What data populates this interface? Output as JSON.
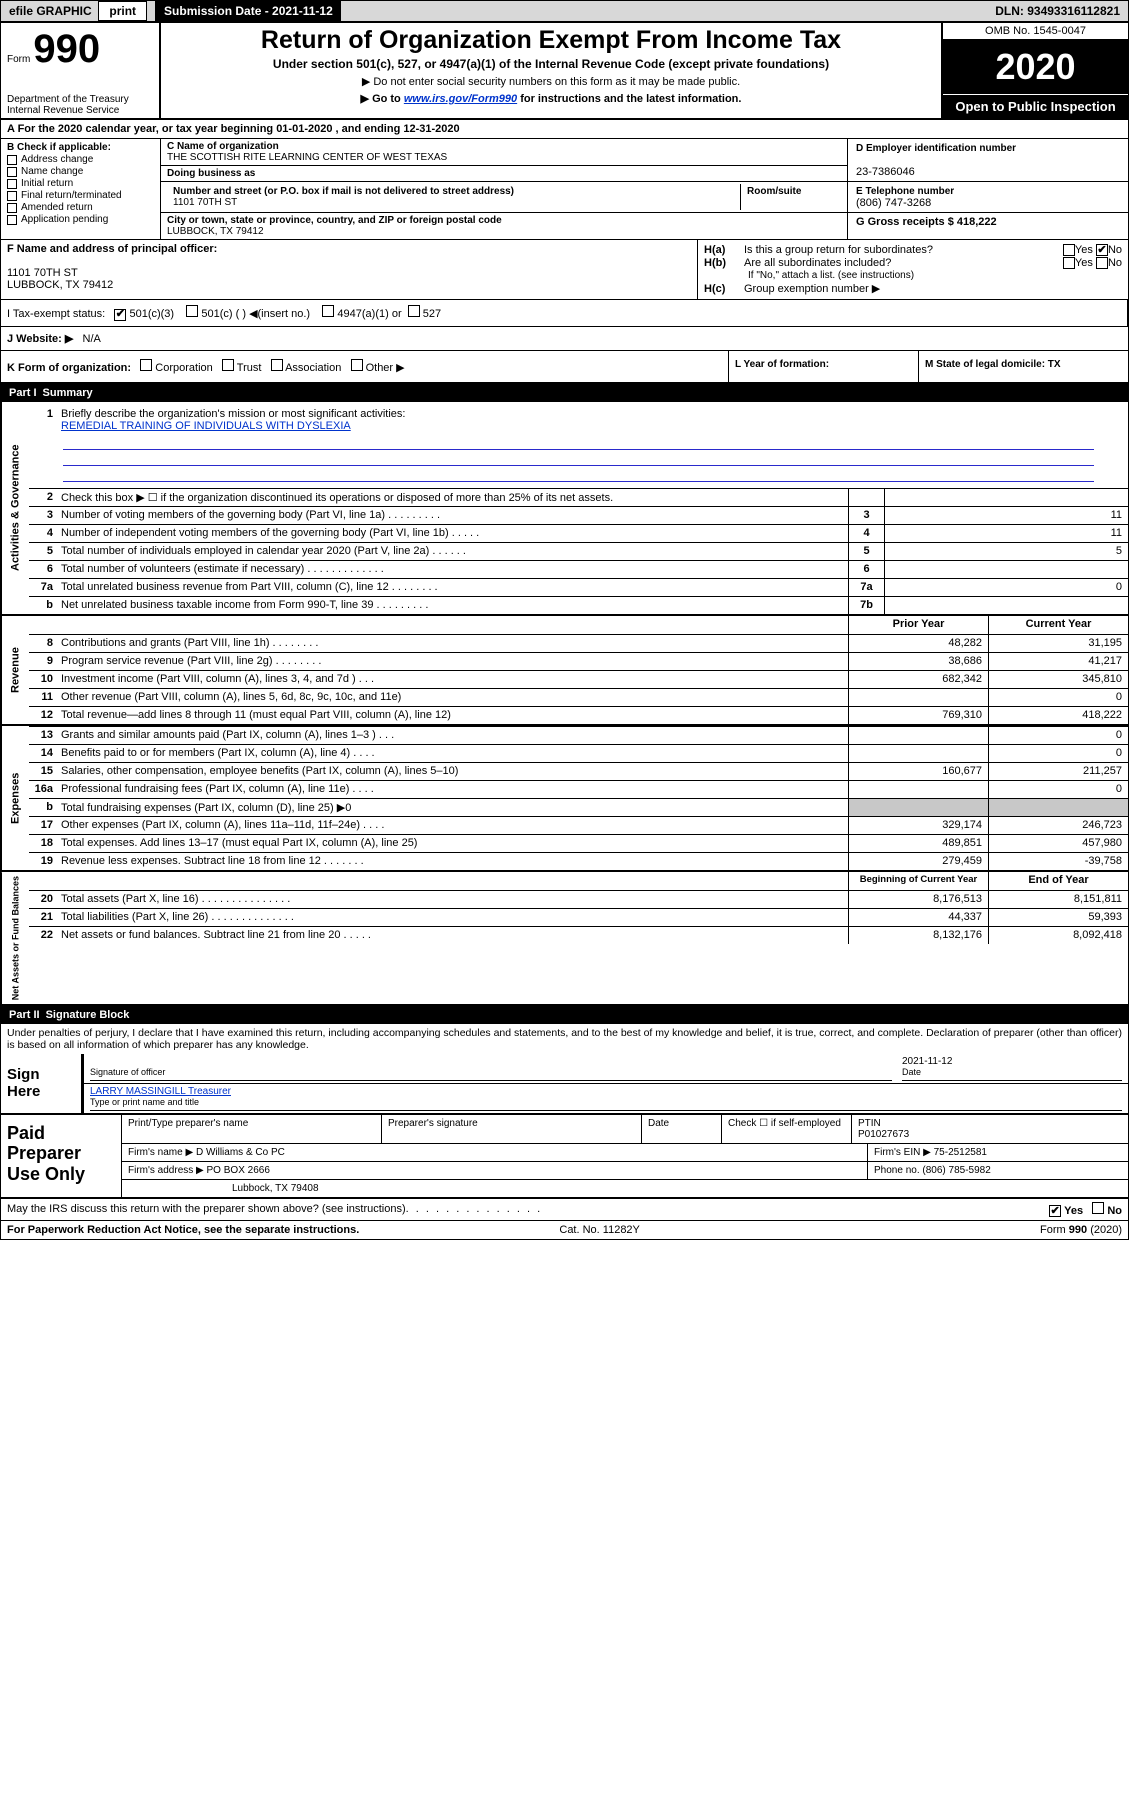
{
  "topbar": {
    "efile": "efile GRAPHIC",
    "print": "print",
    "subdate_label": "Submission Date - 2021-11-12",
    "dln": "DLN: 93493316112821"
  },
  "header": {
    "form_label": "Form",
    "form_number": "990",
    "title": "Return of Organization Exempt From Income Tax",
    "subtitle": "Under section 501(c), 527, or 4947(a)(1) of the Internal Revenue Code (except private foundations)",
    "note1": "▶ Do not enter social security numbers on this form as it may be made public.",
    "note2_prefix": "▶ Go to ",
    "note2_link": "www.irs.gov/Form990",
    "note2_suffix": " for instructions and the latest information.",
    "dept": "Department of the Treasury\nInternal Revenue Service",
    "omb": "OMB No. 1545-0047",
    "year": "2020",
    "open": "Open to Public Inspection"
  },
  "lineA": "A For the 2020 calendar year, or tax year beginning 01-01-2020   , and ending 12-31-2020",
  "boxB": {
    "title": "B Check if applicable:",
    "opts": [
      "Address change",
      "Name change",
      "Initial return",
      "Final return/terminated",
      "Amended return",
      "Application pending"
    ]
  },
  "boxC": {
    "name_label": "C Name of organization",
    "name": "THE SCOTTISH RITE LEARNING CENTER OF WEST TEXAS",
    "dba_label": "Doing business as",
    "addr_label": "Number and street (or P.O. box if mail is not delivered to street address)",
    "room_label": "Room/suite",
    "addr": "1101 70TH ST",
    "city_label": "City or town, state or province, country, and ZIP or foreign postal code",
    "city": "LUBBOCK, TX  79412"
  },
  "boxDE": {
    "d_label": "D Employer identification number",
    "d_val": "23-7386046",
    "e_label": "E Telephone number",
    "e_val": "(806) 747-3268",
    "g_label": "G Gross receipts $",
    "g_val": "418,222"
  },
  "boxF": {
    "label": "F Name and address of principal officer:",
    "addr1": "1101 70TH ST",
    "addr2": "LUBBOCK, TX  79412"
  },
  "boxH": {
    "a_lbl": "H(a)",
    "a_text": "Is this a group return for subordinates?",
    "a_yes": "Yes",
    "a_no": "No",
    "b_lbl": "H(b)",
    "b_text": "Are all subordinates included?",
    "b_note": "If \"No,\" attach a list. (see instructions)",
    "c_lbl": "H(c)",
    "c_text": "Group exemption number ▶"
  },
  "rowI": {
    "label": "I   Tax-exempt status:",
    "o1": "501(c)(3)",
    "o2": "501(c) (   ) ◀(insert no.)",
    "o3": "4947(a)(1) or",
    "o4": "527"
  },
  "rowJ": {
    "label": "J   Website: ▶",
    "val": "N/A"
  },
  "rowK": {
    "k": "K Form of organization:",
    "opts": [
      "Corporation",
      "Trust",
      "Association",
      "Other ▶"
    ],
    "l": "L Year of formation:",
    "m": "M State of legal domicile: TX"
  },
  "part1": {
    "label": "Part I",
    "title": "Summary"
  },
  "mission": {
    "num": "1",
    "text": "Briefly describe the organization's mission or most significant activities:",
    "val": "REMEDIAL TRAINING OF INDIVIDUALS WITH DYSLEXIA"
  },
  "gov": {
    "side": "Activities & Governance",
    "rows": [
      {
        "n": "2",
        "d": "Check this box ▶ ☐  if the organization discontinued its operations or disposed of more than 25% of its net assets.",
        "k": "",
        "v": ""
      },
      {
        "n": "3",
        "d": "Number of voting members of the governing body (Part VI, line 1a)   .    .    .    .    .    .    .    .    .",
        "k": "3",
        "v": "11"
      },
      {
        "n": "4",
        "d": "Number of independent voting members of the governing body (Part VI, line 1b)   .    .    .    .    .",
        "k": "4",
        "v": "11"
      },
      {
        "n": "5",
        "d": "Total number of individuals employed in calendar year 2020 (Part V, line 2a)   .    .    .    .    .    .",
        "k": "5",
        "v": "5"
      },
      {
        "n": "6",
        "d": "Total number of volunteers (estimate if necessary)   .    .    .    .    .    .    .    .    .    .    .    .    .",
        "k": "6",
        "v": ""
      },
      {
        "n": "7a",
        "d": "Total unrelated business revenue from Part VIII, column (C), line 12   .    .    .    .    .    .    .    .",
        "k": "7a",
        "v": "0"
      },
      {
        "n": "b",
        "d": "Net unrelated business taxable income from Form 990-T, line 39   .    .    .    .    .    .    .    .    .",
        "k": "7b",
        "v": ""
      }
    ]
  },
  "rev": {
    "side": "Revenue",
    "hdr_prior": "Prior Year",
    "hdr_curr": "Current Year",
    "rows": [
      {
        "n": "8",
        "d": "Contributions and grants (Part VIII, line 1h)   .    .    .    .    .    .    .    .",
        "p": "48,282",
        "c": "31,195"
      },
      {
        "n": "9",
        "d": "Program service revenue (Part VIII, line 2g)   .    .    .    .    .    .    .    .",
        "p": "38,686",
        "c": "41,217"
      },
      {
        "n": "10",
        "d": "Investment income (Part VIII, column (A), lines 3, 4, and 7d )   .    .    .",
        "p": "682,342",
        "c": "345,810"
      },
      {
        "n": "11",
        "d": "Other revenue (Part VIII, column (A), lines 5, 6d, 8c, 9c, 10c, and 11e)",
        "p": "",
        "c": "0"
      },
      {
        "n": "12",
        "d": "Total revenue—add lines 8 through 11 (must equal Part VIII, column (A), line 12)",
        "p": "769,310",
        "c": "418,222"
      }
    ]
  },
  "exp": {
    "side": "Expenses",
    "rows": [
      {
        "n": "13",
        "d": "Grants and similar amounts paid (Part IX, column (A), lines 1–3 )   .    .    .",
        "p": "",
        "c": "0"
      },
      {
        "n": "14",
        "d": "Benefits paid to or for members (Part IX, column (A), line 4)   .    .    .    .",
        "p": "",
        "c": "0"
      },
      {
        "n": "15",
        "d": "Salaries, other compensation, employee benefits (Part IX, column (A), lines 5–10)",
        "p": "160,677",
        "c": "211,257"
      },
      {
        "n": "16a",
        "d": "Professional fundraising fees (Part IX, column (A), line 11e)   .    .    .    .",
        "p": "",
        "c": "0"
      },
      {
        "n": "b",
        "d": "Total fundraising expenses (Part IX, column (D), line 25) ▶0",
        "p": "SHADED",
        "c": "SHADED"
      },
      {
        "n": "17",
        "d": "Other expenses (Part IX, column (A), lines 11a–11d, 11f–24e)   .    .    .    .",
        "p": "329,174",
        "c": "246,723"
      },
      {
        "n": "18",
        "d": "Total expenses. Add lines 13–17 (must equal Part IX, column (A), line 25)",
        "p": "489,851",
        "c": "457,980"
      },
      {
        "n": "19",
        "d": "Revenue less expenses. Subtract line 18 from line 12   .    .    .    .    .    .    .",
        "p": "279,459",
        "c": "-39,758"
      }
    ]
  },
  "net": {
    "side": "Net Assets or Fund Balances",
    "hdr_beg": "Beginning of Current Year",
    "hdr_end": "End of Year",
    "rows": [
      {
        "n": "20",
        "d": "Total assets (Part X, line 16)   .    .    .    .    .    .    .    .    .    .    .    .    .    .    .",
        "p": "8,176,513",
        "c": "8,151,811"
      },
      {
        "n": "21",
        "d": "Total liabilities (Part X, line 26)   .    .    .    .    .    .    .    .    .    .    .    .    .    .",
        "p": "44,337",
        "c": "59,393"
      },
      {
        "n": "22",
        "d": "Net assets or fund balances. Subtract line 21 from line 20   .    .    .    .    .",
        "p": "8,132,176",
        "c": "8,092,418"
      }
    ]
  },
  "part2": {
    "label": "Part II",
    "title": "Signature Block"
  },
  "sig": {
    "decl": "Under penalties of perjury, I declare that I have examined this return, including accompanying schedules and statements, and to the best of my knowledge and belief, it is true, correct, and complete. Declaration of preparer (other than officer) is based on all information of which preparer has any knowledge.",
    "sign_here": "Sign Here",
    "sig_of_officer": "Signature of officer",
    "date_label": "Date",
    "date": "2021-11-12",
    "name": "LARRY MASSINGILL  Treasurer",
    "type_label": "Type or print name and title"
  },
  "prep": {
    "label": "Paid Preparer Use Only",
    "h1": "Print/Type preparer's name",
    "h2": "Preparer's signature",
    "h3": "Date",
    "h4": "Check ☐ if self-employed",
    "h5_label": "PTIN",
    "h5": "P01027673",
    "firm_label": "Firm's name   ▶",
    "firm": "D Williams & Co PC",
    "ein_label": "Firm's EIN ▶",
    "ein": "75-2512581",
    "addr_label": "Firm's address ▶",
    "addr1": "PO BOX 2666",
    "addr2": "Lubbock, TX  79408",
    "phone_label": "Phone no.",
    "phone": "(806) 785-5982"
  },
  "discuss": {
    "q": "May the IRS discuss this return with the preparer shown above? (see instructions)",
    "yes": "Yes",
    "no": "No"
  },
  "footer": {
    "left": "For Paperwork Reduction Act Notice, see the separate instructions.",
    "mid": "Cat. No. 11282Y",
    "right": "Form 990 (2020)"
  }
}
